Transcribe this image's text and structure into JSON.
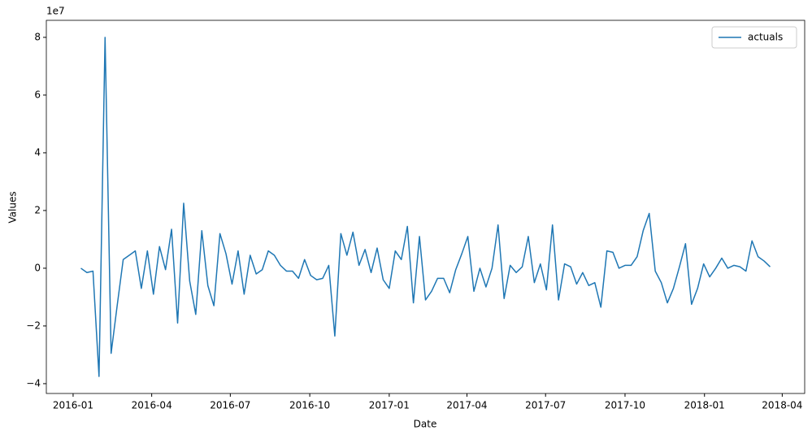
{
  "chart_data": {
    "type": "line",
    "xlabel": "Date",
    "ylabel": "Values",
    "y_offset_label": "1e7",
    "x": [
      "2016-01-10",
      "2016-01-17",
      "2016-01-24",
      "2016-01-31",
      "2016-02-07",
      "2016-02-14",
      "2016-02-21",
      "2016-02-28",
      "2016-03-06",
      "2016-03-13",
      "2016-03-20",
      "2016-03-27",
      "2016-04-03",
      "2016-04-10",
      "2016-04-17",
      "2016-04-24",
      "2016-05-01",
      "2016-05-08",
      "2016-05-15",
      "2016-05-22",
      "2016-05-29",
      "2016-06-05",
      "2016-06-12",
      "2016-06-19",
      "2016-06-26",
      "2016-07-03",
      "2016-07-10",
      "2016-07-17",
      "2016-07-24",
      "2016-07-31",
      "2016-08-07",
      "2016-08-14",
      "2016-08-21",
      "2016-08-28",
      "2016-09-04",
      "2016-09-11",
      "2016-09-18",
      "2016-09-25",
      "2016-10-02",
      "2016-10-09",
      "2016-10-16",
      "2016-10-23",
      "2016-10-30",
      "2016-11-06",
      "2016-11-13",
      "2016-11-20",
      "2016-11-27",
      "2016-12-04",
      "2016-12-11",
      "2016-12-18",
      "2016-12-25",
      "2017-01-01",
      "2017-01-08",
      "2017-01-15",
      "2017-01-22",
      "2017-01-29",
      "2017-02-05",
      "2017-02-12",
      "2017-02-19",
      "2017-02-26",
      "2017-03-05",
      "2017-03-12",
      "2017-03-19",
      "2017-03-26",
      "2017-04-02",
      "2017-04-09",
      "2017-04-16",
      "2017-04-23",
      "2017-04-30",
      "2017-05-07",
      "2017-05-14",
      "2017-05-21",
      "2017-05-28",
      "2017-06-04",
      "2017-06-11",
      "2017-06-18",
      "2017-06-25",
      "2017-07-02",
      "2017-07-09",
      "2017-07-16",
      "2017-07-23",
      "2017-07-30",
      "2017-08-06",
      "2017-08-13",
      "2017-08-20",
      "2017-08-27",
      "2017-09-03",
      "2017-09-10",
      "2017-09-17",
      "2017-09-24",
      "2017-10-01",
      "2017-10-08",
      "2017-10-15",
      "2017-10-22",
      "2017-10-29",
      "2017-11-05",
      "2017-11-12",
      "2017-11-19",
      "2017-11-26",
      "2017-12-03",
      "2017-12-10",
      "2017-12-17",
      "2017-12-24",
      "2017-12-31",
      "2018-01-07",
      "2018-01-14",
      "2018-01-21",
      "2018-01-28",
      "2018-02-04",
      "2018-02-11",
      "2018-02-18",
      "2018-02-25",
      "2018-03-04",
      "2018-03-11",
      "2018-03-18"
    ],
    "series": [
      {
        "name": "actuals",
        "color": "#1f77b4",
        "values": [
          0,
          -0.15,
          -0.1,
          -3.75,
          8.0,
          -2.95,
          -1.3,
          0.3,
          0.45,
          0.6,
          -0.7,
          0.6,
          -0.9,
          0.75,
          -0.05,
          1.35,
          -1.9,
          2.25,
          -0.45,
          -1.6,
          1.3,
          -0.6,
          -1.3,
          1.2,
          0.5,
          -0.55,
          0.6,
          -0.9,
          0.45,
          -0.2,
          -0.05,
          0.6,
          0.45,
          0.1,
          -0.1,
          -0.1,
          -0.35,
          0.3,
          -0.25,
          -0.4,
          -0.35,
          0.1,
          -2.35,
          1.2,
          0.45,
          1.25,
          0.1,
          0.65,
          -0.15,
          0.7,
          -0.4,
          -0.7,
          0.6,
          0.3,
          1.45,
          -1.2,
          1.1,
          -1.1,
          -0.8,
          -0.35,
          -0.35,
          -0.85,
          -0.05,
          0.5,
          1.1,
          -0.8,
          0,
          -0.65,
          0,
          1.5,
          -1.05,
          0.1,
          -0.15,
          0.05,
          1.1,
          -0.5,
          0.15,
          -0.75,
          1.5,
          -1.1,
          0.15,
          0.05,
          -0.55,
          -0.15,
          -0.6,
          -0.5,
          -1.35,
          0.6,
          0.55,
          0,
          0.1,
          0.1,
          0.4,
          1.3,
          1.9,
          -0.1,
          -0.5,
          -1.2,
          -0.7,
          0.05,
          0.85,
          -1.25,
          -0.7,
          0.15,
          -0.3,
          0,
          0.35,
          0,
          0.1,
          0.05,
          -0.1,
          0.95,
          0.4,
          0.25,
          0.05
        ]
      }
    ],
    "xlim": [
      "2015-12-01",
      "2018-04-27"
    ],
    "xticks": [
      {
        "value": "2016-01-01",
        "label": "2016-01"
      },
      {
        "value": "2016-04-01",
        "label": "2016-04"
      },
      {
        "value": "2016-07-01",
        "label": "2016-07"
      },
      {
        "value": "2016-10-01",
        "label": "2016-10"
      },
      {
        "value": "2017-01-01",
        "label": "2017-01"
      },
      {
        "value": "2017-04-01",
        "label": "2017-04"
      },
      {
        "value": "2017-07-01",
        "label": "2017-07"
      },
      {
        "value": "2017-10-01",
        "label": "2017-10"
      },
      {
        "value": "2018-01-01",
        "label": "2018-01"
      },
      {
        "value": "2018-04-01",
        "label": "2018-04"
      }
    ],
    "ylim": [
      -4.34,
      8.59
    ],
    "yticks": [
      {
        "value": -4,
        "label": "−4"
      },
      {
        "value": -2,
        "label": "−2"
      },
      0,
      2,
      4,
      6,
      8
    ],
    "legend": "upper right",
    "grid": false
  }
}
